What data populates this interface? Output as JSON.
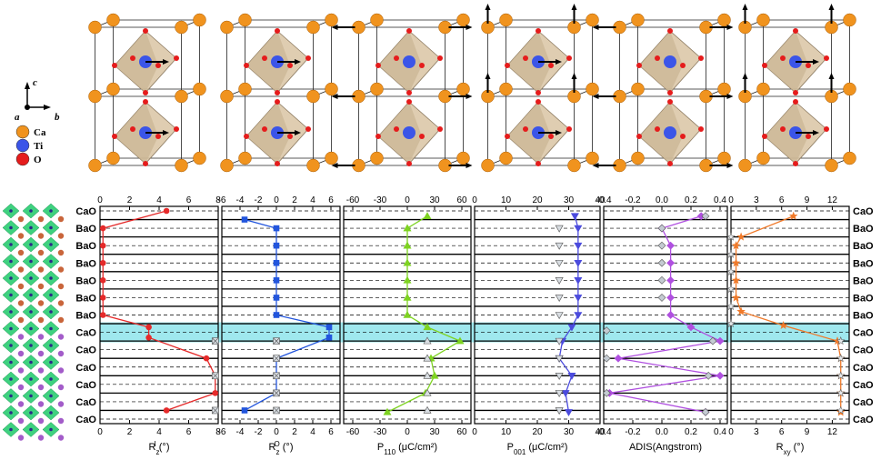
{
  "legend": {
    "axis_c": "c",
    "axis_a": "a",
    "axis_b": "b",
    "atoms": [
      {
        "label": "Ca",
        "color": "#f0931e"
      },
      {
        "label": "Ti",
        "color": "#3b55e8"
      },
      {
        "label": "O",
        "color": "#e51c1c"
      }
    ]
  },
  "layers_left": [
    "CaO",
    "BaO",
    "BaO",
    "BaO",
    "BaO",
    "BaO",
    "BaO",
    "CaO",
    "CaO",
    "CaO",
    "CaO",
    "CaO",
    "CaO"
  ],
  "layers_right": [
    "CaO",
    "BaO",
    "BaO",
    "BaO",
    "BaO",
    "BaO",
    "BaO",
    "CaO",
    "CaO",
    "CaO",
    "CaO",
    "CaO",
    "CaO"
  ],
  "highlight_layer_index": 7,
  "highlight_color": "#9fe8ee",
  "chart_data": [
    {
      "type": "line",
      "xlabel": "R",
      "xlabel_sup": "I",
      "xlabel_sub": "z",
      "xlabel_unit": " (°)",
      "xlim": [
        0,
        8
      ],
      "xticks": [
        0,
        2,
        4,
        6,
        8
      ],
      "color": "#e52a2a",
      "marker": "circle",
      "series": [
        {
          "name": "",
          "x": [
            4.5,
            0.2,
            0.2,
            0.2,
            0.2,
            0.2,
            0.2,
            3.3,
            3.3,
            7.2,
            7.8,
            7.8,
            4.5
          ],
          "layer_pos": [
            0,
            1,
            2,
            3,
            4,
            5,
            6,
            6.7,
            7.3,
            8.5,
            9.5,
            10.5,
            11.5
          ]
        },
        {
          "name": "",
          "x": [
            7.8,
            7.8,
            7.8
          ],
          "layer_pos": [
            7.5,
            9.5,
            11.5
          ],
          "marker": "square-x",
          "color": "#9aa0a6"
        }
      ]
    },
    {
      "type": "line",
      "xlabel": "R",
      "xlabel_sup": "O",
      "xlabel_sub": "z",
      "xlabel_unit": " (°)",
      "xlim": [
        -6,
        7
      ],
      "xticks": [
        -6,
        -4,
        -2,
        0,
        2,
        4,
        6
      ],
      "color": "#2255dd",
      "marker": "square",
      "series": [
        {
          "name": "",
          "x": [
            -3.5,
            0,
            0,
            0,
            0,
            0,
            0,
            5.8,
            5.8,
            0,
            0,
            0,
            -3.5
          ],
          "layer_pos": [
            0.5,
            1,
            2,
            3,
            4,
            5,
            6,
            6.7,
            7.3,
            8.5,
            9.5,
            10.5,
            11.5
          ]
        },
        {
          "name": "",
          "x": [
            0,
            0,
            0,
            0,
            0
          ],
          "layer_pos": [
            7.5,
            8.5,
            9.5,
            10.5,
            11.5
          ],
          "marker": "square-x",
          "color": "#9aa0a6"
        }
      ]
    },
    {
      "type": "line",
      "xlabel": "P",
      "xlabel_sub": "110",
      "xlabel_unit": " (μC/cm²)",
      "xlim": [
        -70,
        70
      ],
      "xticks": [
        -60,
        -30,
        0,
        30,
        60
      ],
      "color": "#7ed321",
      "marker": "triangle-up",
      "series": [
        {
          "name": "",
          "x": [
            22,
            0,
            0,
            0,
            0,
            0,
            0,
            22,
            58,
            26,
            30,
            20,
            -22
          ],
          "layer_pos": [
            0.3,
            1,
            2,
            3,
            4,
            5,
            6,
            6.7,
            7.5,
            8.5,
            9.5,
            10.5,
            11.6
          ]
        },
        {
          "name": "",
          "x": [
            22,
            22,
            22,
            22,
            22
          ],
          "layer_pos": [
            7.5,
            8.5,
            9.5,
            10.5,
            11.5
          ],
          "marker": "triangle-up",
          "color": "#9aa0a6"
        }
      ]
    },
    {
      "type": "line",
      "xlabel": "P",
      "xlabel_sub": "001",
      "xlabel_unit": " (μC/cm²)",
      "xlim": [
        0,
        40
      ],
      "xticks": [
        0,
        10,
        20,
        30,
        40
      ],
      "color": "#4b4bdd",
      "marker": "triangle-down",
      "series": [
        {
          "name": "",
          "x": [
            32,
            33,
            33,
            33,
            33,
            33,
            33,
            31,
            28,
            27,
            31,
            29,
            30
          ],
          "layer_pos": [
            0.3,
            1,
            2,
            3,
            4,
            5,
            6,
            6.7,
            7.5,
            8.5,
            9.5,
            10.5,
            11.6
          ]
        },
        {
          "name": "",
          "x": [
            27,
            27,
            27,
            27,
            27,
            27,
            27,
            27,
            27,
            27,
            27
          ],
          "layer_pos": [
            1,
            2,
            3,
            4,
            5,
            6,
            7.5,
            8.5,
            9.5,
            10.5,
            11.5
          ],
          "marker": "triangle-down",
          "color": "#9aa0a6"
        }
      ]
    },
    {
      "type": "line",
      "xlabel": "ADIS(Angstrom)",
      "xlim": [
        -0.4,
        0.45
      ],
      "xticks": [
        -0.4,
        -0.2,
        0.0,
        0.2,
        0.4
      ],
      "color": "#b050e0",
      "marker": "diamond",
      "series": [
        {
          "name": "",
          "x": [
            0.27,
            0,
            0.06,
            0.06,
            0.06,
            0.06,
            0.06,
            0.2,
            0.4,
            -0.3,
            0.4,
            -0.36,
            0.3
          ],
          "layer_pos": [
            0.3,
            1,
            2,
            3,
            4,
            5,
            6,
            6.7,
            7.5,
            8.5,
            9.5,
            10.5,
            11.6
          ]
        },
        {
          "name": "",
          "x": [
            0.3,
            0,
            0,
            0,
            0,
            0,
            -0.38,
            0.35,
            -0.38,
            0.32,
            -0.38,
            0.3
          ],
          "layer_pos": [
            0.3,
            1,
            2,
            3,
            4,
            5,
            6.9,
            7.5,
            8.5,
            9.5,
            10.5,
            11.6
          ],
          "marker": "diamond",
          "color": "#9aa0a6"
        }
      ]
    },
    {
      "type": "line",
      "xlabel": "R",
      "xlabel_sub": "xy",
      "xlabel_unit": " (°)",
      "xlim": [
        0,
        14
      ],
      "xticks": [
        0,
        3,
        6,
        9,
        12
      ],
      "color": "#f07a2a",
      "marker": "star",
      "series": [
        {
          "name": "",
          "x": [
            7.4,
            1.2,
            0.6,
            0.6,
            0.6,
            0.6,
            1.2,
            6.2,
            12.6,
            13.0,
            13.0,
            13.0,
            13.0
          ],
          "layer_pos": [
            0.3,
            1.5,
            2,
            3,
            4,
            5,
            5.8,
            6.6,
            7.5,
            8.5,
            9.5,
            10.5,
            11.6
          ]
        },
        {
          "name": "",
          "x": [
            0,
            0,
            0,
            0,
            0,
            0,
            13,
            13,
            13,
            13,
            13
          ],
          "layer_pos": [
            1.5,
            2.5,
            3.5,
            4.5,
            5.5,
            6.5,
            7.5,
            8.5,
            9.5,
            10.5,
            11.5
          ],
          "marker": "star",
          "color": "#9aa0a6"
        }
      ]
    }
  ]
}
